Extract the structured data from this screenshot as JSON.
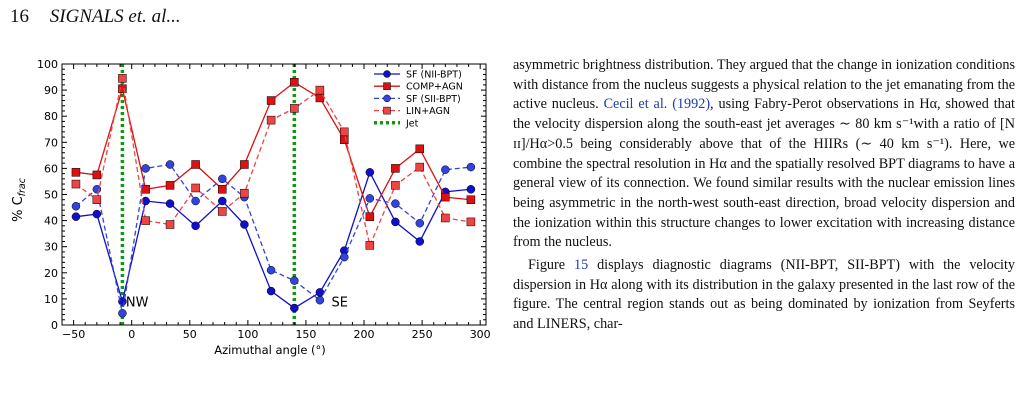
{
  "header": {
    "page_number": "16",
    "running_title": "SIGNALS et. al..."
  },
  "chart_data": {
    "type": "line",
    "title": "",
    "xlabel": "Azimuthal angle (°)",
    "ylabel": "% C_frac",
    "xlim": [
      -60,
      305
    ],
    "ylim": [
      0,
      100
    ],
    "xticks": [
      -50,
      0,
      50,
      100,
      150,
      200,
      250,
      300
    ],
    "yticks": [
      0,
      10,
      20,
      30,
      40,
      50,
      60,
      70,
      80,
      90,
      100
    ],
    "x": [
      -48,
      -30,
      -8,
      12,
      33,
      55,
      78,
      97,
      120,
      140,
      162,
      183,
      205,
      227,
      248,
      270,
      292
    ],
    "series": [
      {
        "name": "SF (NII-BPT)",
        "color": "#1010cc",
        "dashed": false,
        "marker": "circle",
        "values": [
          41.5,
          42.5,
          9,
          47.5,
          46.5,
          38,
          47.5,
          38.5,
          13,
          6.5,
          12.5,
          28.5,
          58.5,
          39.5,
          32,
          51,
          52
        ]
      },
      {
        "name": "COMP+AGN",
        "color": "#dd1111",
        "dashed": false,
        "marker": "square",
        "values": [
          58.5,
          57.5,
          90.5,
          52,
          53.5,
          61.5,
          52,
          61.5,
          86,
          93,
          87,
          71,
          41.5,
          60,
          67.5,
          49,
          48
        ]
      },
      {
        "name": "SF (SII-BPT)",
        "color": "#3344dd",
        "dashed": true,
        "marker": "circle",
        "values": [
          45.5,
          52,
          4.5,
          60,
          61.5,
          47.5,
          56,
          49,
          21,
          17,
          9.5,
          26,
          48.5,
          46.5,
          39,
          59.5,
          60.5
        ]
      },
      {
        "name": "LIN+AGN",
        "color": "#ee4444",
        "dashed": true,
        "marker": "square",
        "values": [
          54,
          48,
          94.5,
          40,
          38.5,
          52.5,
          43.5,
          50.5,
          78.5,
          83,
          90,
          74,
          30.5,
          53.5,
          60.5,
          41,
          39.5
        ]
      },
      {
        "name": "Jet",
        "color": "#119911",
        "dashed": true,
        "marker": "none",
        "vlines": [
          -8,
          140
        ]
      }
    ],
    "annotations": [
      {
        "text": "NW",
        "x": -5,
        "y": 9
      },
      {
        "text": "SE",
        "x": 172,
        "y": 9
      }
    ],
    "legend_position": "top-right",
    "grid": false
  },
  "text": {
    "p1": {
      "a": "asymmetric brightness distribution. They argued that the change in ionization conditions with distance from the nucleus suggests a physical relation to the jet emanating from the active nucleus.",
      "cite": "Cecil et al. (1992)",
      "b": ", using Fabry-Perot observations in Hα, showed that the velocity dispersion along the south-east jet averages ∼ 80 km s⁻¹with a ratio of [N ɪɪ]/Hα>0.5 being considerably above that of the HIIRs (∼ 40 km s⁻¹). Here, we combine the spectral resolution in Hα and the spatially resolved BPT diagrams to have a general view of its connection. We found similar results with the nuclear emission lines being asymmetric in the north-west south-east direction, broad velocity dispersion and the ionization within this structure changes to lower excitation with increasing distance from the nucleus."
    },
    "p2": {
      "a": "Figure",
      "cite": "15",
      "b": "displays diagnostic diagrams (NII-BPT, SII-BPT) with the velocity dispersion in Hα along with its distribution in the galaxy presented in the last row of the figure. The central region stands out as being dominated by ionization from Seyferts and LINERS, char-"
    }
  }
}
